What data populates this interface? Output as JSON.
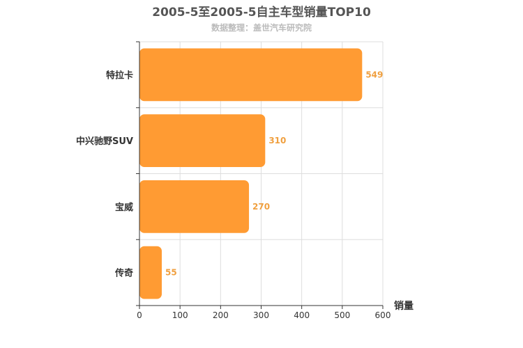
{
  "chart_data": {
    "type": "bar",
    "orientation": "horizontal",
    "title": "2005-5至2005-5自主车型销量TOP10",
    "subtitle": "数据整理：盖世汽车研究院",
    "xlabel": "销量",
    "ylabel": "",
    "categories": [
      "特拉卡",
      "中兴驰野SUV",
      "宝威",
      "传奇"
    ],
    "values": [
      549,
      310,
      270,
      55
    ],
    "xlim": [
      0,
      600
    ],
    "xticks": [
      0,
      100,
      200,
      300,
      400,
      500,
      600
    ],
    "grid": true,
    "bar_color": "#ff9b33",
    "label_color": "#f0a040"
  }
}
